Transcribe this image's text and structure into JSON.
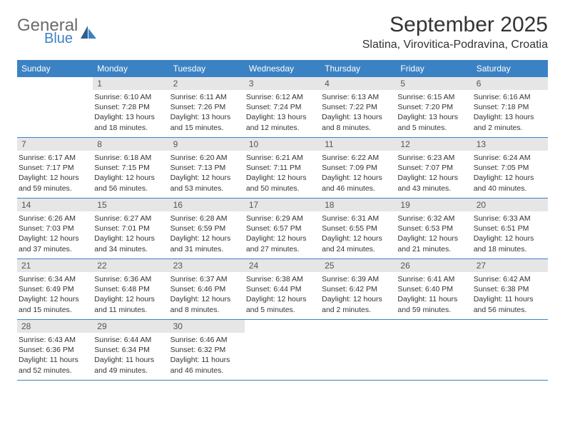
{
  "brand": {
    "text1": "General",
    "text2": "Blue"
  },
  "header": {
    "title": "September 2025",
    "location": "Slatina, Virovitica-Podravina, Croatia"
  },
  "colors": {
    "accent": "#3b82c4",
    "daynum_bg": "#e6e6e6",
    "text": "#333333",
    "logo_gray": "#6b6b6b"
  },
  "days_of_week": [
    "Sunday",
    "Monday",
    "Tuesday",
    "Wednesday",
    "Thursday",
    "Friday",
    "Saturday"
  ],
  "weeks": [
    [
      null,
      {
        "n": "1",
        "sr": "Sunrise: 6:10 AM",
        "ss": "Sunset: 7:28 PM",
        "d1": "Daylight: 13 hours",
        "d2": "and 18 minutes."
      },
      {
        "n": "2",
        "sr": "Sunrise: 6:11 AM",
        "ss": "Sunset: 7:26 PM",
        "d1": "Daylight: 13 hours",
        "d2": "and 15 minutes."
      },
      {
        "n": "3",
        "sr": "Sunrise: 6:12 AM",
        "ss": "Sunset: 7:24 PM",
        "d1": "Daylight: 13 hours",
        "d2": "and 12 minutes."
      },
      {
        "n": "4",
        "sr": "Sunrise: 6:13 AM",
        "ss": "Sunset: 7:22 PM",
        "d1": "Daylight: 13 hours",
        "d2": "and 8 minutes."
      },
      {
        "n": "5",
        "sr": "Sunrise: 6:15 AM",
        "ss": "Sunset: 7:20 PM",
        "d1": "Daylight: 13 hours",
        "d2": "and 5 minutes."
      },
      {
        "n": "6",
        "sr": "Sunrise: 6:16 AM",
        "ss": "Sunset: 7:18 PM",
        "d1": "Daylight: 13 hours",
        "d2": "and 2 minutes."
      }
    ],
    [
      {
        "n": "7",
        "sr": "Sunrise: 6:17 AM",
        "ss": "Sunset: 7:17 PM",
        "d1": "Daylight: 12 hours",
        "d2": "and 59 minutes."
      },
      {
        "n": "8",
        "sr": "Sunrise: 6:18 AM",
        "ss": "Sunset: 7:15 PM",
        "d1": "Daylight: 12 hours",
        "d2": "and 56 minutes."
      },
      {
        "n": "9",
        "sr": "Sunrise: 6:20 AM",
        "ss": "Sunset: 7:13 PM",
        "d1": "Daylight: 12 hours",
        "d2": "and 53 minutes."
      },
      {
        "n": "10",
        "sr": "Sunrise: 6:21 AM",
        "ss": "Sunset: 7:11 PM",
        "d1": "Daylight: 12 hours",
        "d2": "and 50 minutes."
      },
      {
        "n": "11",
        "sr": "Sunrise: 6:22 AM",
        "ss": "Sunset: 7:09 PM",
        "d1": "Daylight: 12 hours",
        "d2": "and 46 minutes."
      },
      {
        "n": "12",
        "sr": "Sunrise: 6:23 AM",
        "ss": "Sunset: 7:07 PM",
        "d1": "Daylight: 12 hours",
        "d2": "and 43 minutes."
      },
      {
        "n": "13",
        "sr": "Sunrise: 6:24 AM",
        "ss": "Sunset: 7:05 PM",
        "d1": "Daylight: 12 hours",
        "d2": "and 40 minutes."
      }
    ],
    [
      {
        "n": "14",
        "sr": "Sunrise: 6:26 AM",
        "ss": "Sunset: 7:03 PM",
        "d1": "Daylight: 12 hours",
        "d2": "and 37 minutes."
      },
      {
        "n": "15",
        "sr": "Sunrise: 6:27 AM",
        "ss": "Sunset: 7:01 PM",
        "d1": "Daylight: 12 hours",
        "d2": "and 34 minutes."
      },
      {
        "n": "16",
        "sr": "Sunrise: 6:28 AM",
        "ss": "Sunset: 6:59 PM",
        "d1": "Daylight: 12 hours",
        "d2": "and 31 minutes."
      },
      {
        "n": "17",
        "sr": "Sunrise: 6:29 AM",
        "ss": "Sunset: 6:57 PM",
        "d1": "Daylight: 12 hours",
        "d2": "and 27 minutes."
      },
      {
        "n": "18",
        "sr": "Sunrise: 6:31 AM",
        "ss": "Sunset: 6:55 PM",
        "d1": "Daylight: 12 hours",
        "d2": "and 24 minutes."
      },
      {
        "n": "19",
        "sr": "Sunrise: 6:32 AM",
        "ss": "Sunset: 6:53 PM",
        "d1": "Daylight: 12 hours",
        "d2": "and 21 minutes."
      },
      {
        "n": "20",
        "sr": "Sunrise: 6:33 AM",
        "ss": "Sunset: 6:51 PM",
        "d1": "Daylight: 12 hours",
        "d2": "and 18 minutes."
      }
    ],
    [
      {
        "n": "21",
        "sr": "Sunrise: 6:34 AM",
        "ss": "Sunset: 6:49 PM",
        "d1": "Daylight: 12 hours",
        "d2": "and 15 minutes."
      },
      {
        "n": "22",
        "sr": "Sunrise: 6:36 AM",
        "ss": "Sunset: 6:48 PM",
        "d1": "Daylight: 12 hours",
        "d2": "and 11 minutes."
      },
      {
        "n": "23",
        "sr": "Sunrise: 6:37 AM",
        "ss": "Sunset: 6:46 PM",
        "d1": "Daylight: 12 hours",
        "d2": "and 8 minutes."
      },
      {
        "n": "24",
        "sr": "Sunrise: 6:38 AM",
        "ss": "Sunset: 6:44 PM",
        "d1": "Daylight: 12 hours",
        "d2": "and 5 minutes."
      },
      {
        "n": "25",
        "sr": "Sunrise: 6:39 AM",
        "ss": "Sunset: 6:42 PM",
        "d1": "Daylight: 12 hours",
        "d2": "and 2 minutes."
      },
      {
        "n": "26",
        "sr": "Sunrise: 6:41 AM",
        "ss": "Sunset: 6:40 PM",
        "d1": "Daylight: 11 hours",
        "d2": "and 59 minutes."
      },
      {
        "n": "27",
        "sr": "Sunrise: 6:42 AM",
        "ss": "Sunset: 6:38 PM",
        "d1": "Daylight: 11 hours",
        "d2": "and 56 minutes."
      }
    ],
    [
      {
        "n": "28",
        "sr": "Sunrise: 6:43 AM",
        "ss": "Sunset: 6:36 PM",
        "d1": "Daylight: 11 hours",
        "d2": "and 52 minutes."
      },
      {
        "n": "29",
        "sr": "Sunrise: 6:44 AM",
        "ss": "Sunset: 6:34 PM",
        "d1": "Daylight: 11 hours",
        "d2": "and 49 minutes."
      },
      {
        "n": "30",
        "sr": "Sunrise: 6:46 AM",
        "ss": "Sunset: 6:32 PM",
        "d1": "Daylight: 11 hours",
        "d2": "and 46 minutes."
      },
      null,
      null,
      null,
      null
    ]
  ]
}
